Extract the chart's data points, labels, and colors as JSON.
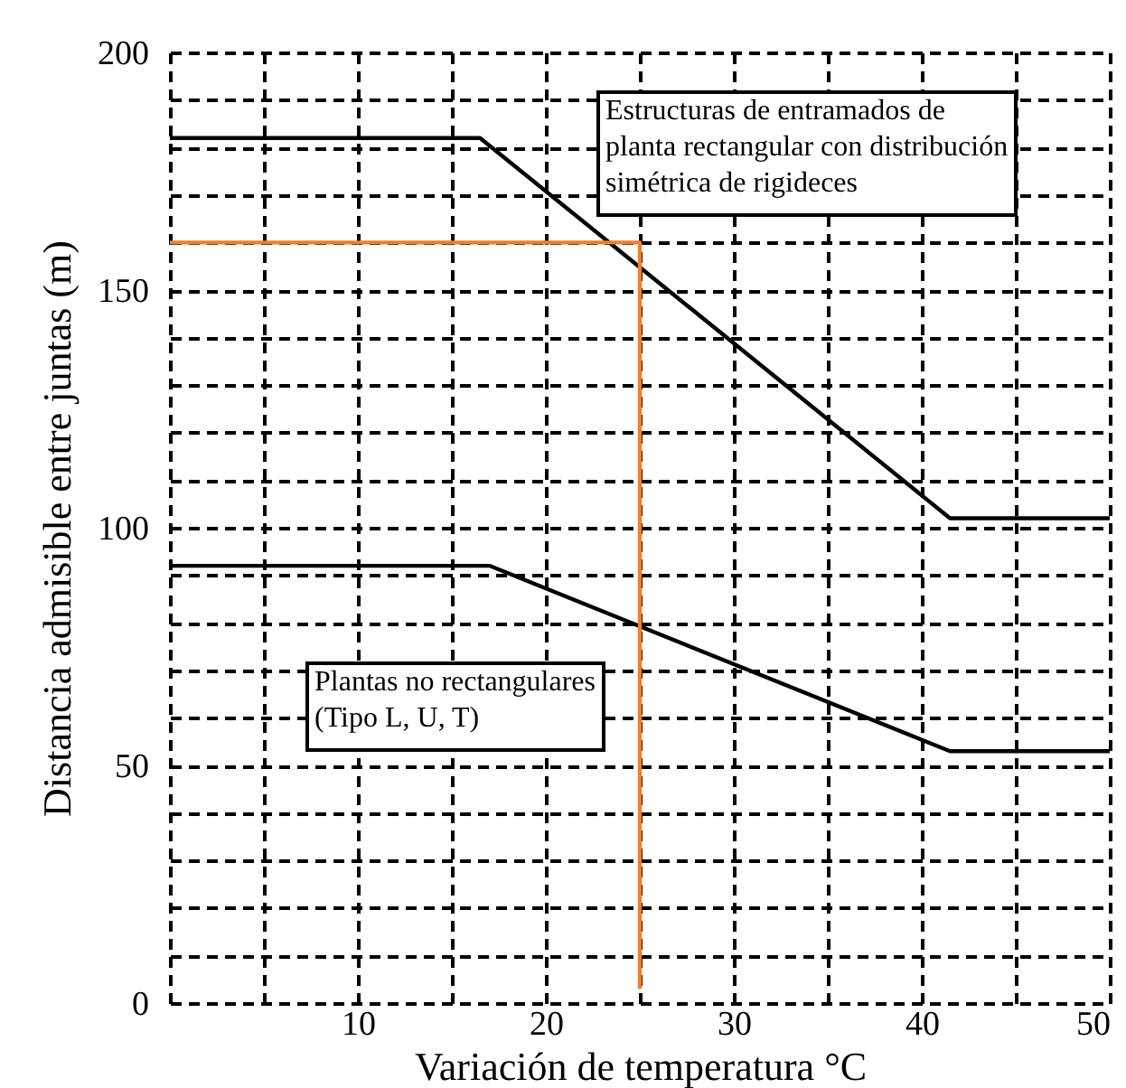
{
  "chart_data": {
    "type": "line",
    "xlabel": "Variación de temperatura °C",
    "ylabel": "Distancia admisible entre juntas (m)",
    "series": [
      {
        "color": "#000000",
        "x": [
          0,
          16.5,
          41.5,
          50
        ],
        "values": [
          182,
          182,
          102,
          102
        ]
      },
      {
        "color": "#000000",
        "x": [
          0,
          17,
          41.5,
          50
        ],
        "values": [
          92,
          92,
          53,
          53
        ]
      },
      {
        "color": "#f07f2a",
        "x": [
          0,
          25,
          25
        ],
        "values": [
          160,
          160,
          3
        ]
      }
    ],
    "xlim": [
      0,
      50
    ],
    "ylim": [
      0,
      200
    ],
    "xticks": [
      {
        "value": 0,
        "label": null
      },
      {
        "value": 5,
        "label": null
      },
      10,
      {
        "value": 15,
        "label": null
      },
      20,
      {
        "value": 25,
        "label": null
      },
      30,
      {
        "value": 35,
        "label": null
      },
      40,
      {
        "value": 45,
        "label": null
      },
      50
    ],
    "yticks": [
      0,
      {
        "value": 10,
        "label": null
      },
      {
        "value": 20,
        "label": null
      },
      {
        "value": 30,
        "label": null
      },
      {
        "value": 40,
        "label": null
      },
      50,
      {
        "value": 60,
        "label": null
      },
      {
        "value": 70,
        "label": null
      },
      {
        "value": 80,
        "label": null
      },
      {
        "value": 90,
        "label": null
      },
      100,
      {
        "value": 110,
        "label": null
      },
      {
        "value": 120,
        "label": null
      },
      {
        "value": 130,
        "label": null
      },
      {
        "value": 140,
        "label": null
      },
      150,
      {
        "value": 160,
        "label": null
      },
      {
        "value": 170,
        "label": null
      },
      {
        "value": 180,
        "label": null
      },
      {
        "value": 190,
        "label": null
      },
      200
    ],
    "grid": true,
    "legend": false,
    "marker": "none",
    "line_style": "solid",
    "annotations": [
      "Estructuras de entramados de\nplanta rectangular con distribución\nsimétrica de rigideces",
      "Plantas no rectangulares\n(Tipo L, U, T)"
    ]
  }
}
